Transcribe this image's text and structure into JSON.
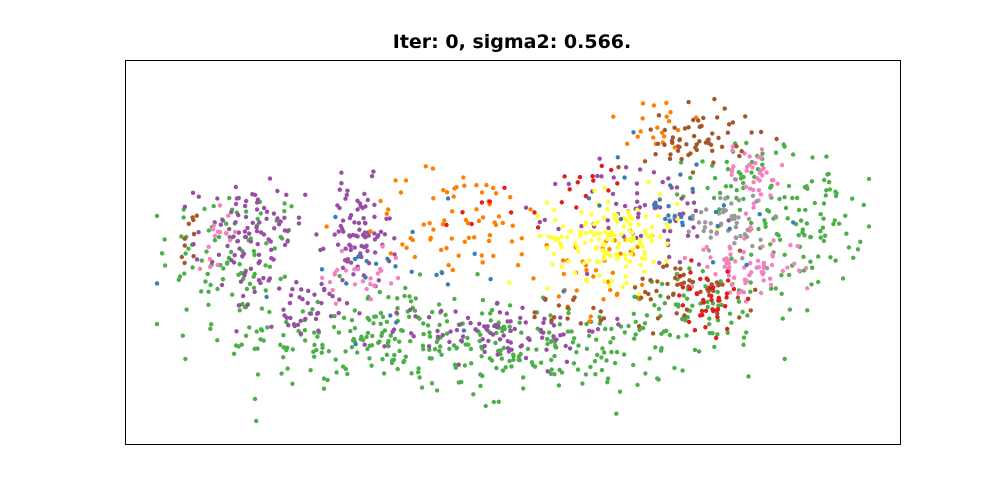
{
  "chart_data": {
    "type": "scatter",
    "title": "Iter: 0, sigma2: 0.566.",
    "xlabel": "",
    "ylabel": "",
    "grid": false,
    "legend": "none",
    "axes_ticks_visible": false,
    "xlim": [
      0,
      100
    ],
    "ylim": [
      0,
      50
    ],
    "series": [
      {
        "color": "#4daf4a",
        "clusters": [
          {
            "center": [
              14,
              25
            ],
            "spread": [
              7,
              6
            ],
            "count": 90
          },
          {
            "center": [
              32,
              14
            ],
            "spread": [
              14,
              5
            ],
            "count": 200
          },
          {
            "center": [
              55,
              12
            ],
            "spread": [
              13,
              4
            ],
            "count": 150
          },
          {
            "center": [
              75,
              17
            ],
            "spread": [
              8,
              4
            ],
            "count": 70
          },
          {
            "center": [
              88,
              29
            ],
            "spread": [
              5,
              6
            ],
            "count": 90
          },
          {
            "center": [
              80,
              35
            ],
            "spread": [
              5,
              4
            ],
            "count": 45
          }
        ]
      },
      {
        "color": "#984ea3",
        "clusters": [
          {
            "center": [
              16,
              27
            ],
            "spread": [
              5,
              5
            ],
            "count": 90
          },
          {
            "center": [
              30,
              27
            ],
            "spread": [
              3,
              5
            ],
            "count": 90
          },
          {
            "center": [
              48,
              15
            ],
            "spread": [
              10,
              3
            ],
            "count": 90
          },
          {
            "center": [
              22,
              18
            ],
            "spread": [
              6,
              3
            ],
            "count": 40
          },
          {
            "center": [
              67,
              30
            ],
            "spread": [
              7,
              5
            ],
            "count": 70
          }
        ]
      },
      {
        "color": "#ff7f00",
        "clusters": [
          {
            "center": [
              43,
              29
            ],
            "spread": [
              10,
              5
            ],
            "count": 70
          },
          {
            "center": [
              62,
              22
            ],
            "spread": [
              5,
              4
            ],
            "count": 35
          },
          {
            "center": [
              68,
              42
            ],
            "spread": [
              5,
              3
            ],
            "count": 20
          }
        ]
      },
      {
        "color": "#ffff33",
        "clusters": [
          {
            "center": [
              63,
              27
            ],
            "spread": [
              6,
              4
            ],
            "count": 150
          }
        ]
      },
      {
        "color": "#f781bf",
        "clusters": [
          {
            "center": [
              12,
              28
            ],
            "spread": [
              2,
              3
            ],
            "count": 15
          },
          {
            "center": [
              80,
              23
            ],
            "spread": [
              5,
              3
            ],
            "count": 70
          },
          {
            "center": [
              81,
              35
            ],
            "spread": [
              3,
              3
            ],
            "count": 40
          },
          {
            "center": [
              31,
              22
            ],
            "spread": [
              4,
              3
            ],
            "count": 25
          }
        ]
      },
      {
        "color": "#999999",
        "clusters": [
          {
            "center": [
              77,
              29
            ],
            "spread": [
              4,
              3
            ],
            "count": 50
          }
        ]
      },
      {
        "color": "#a65628",
        "clusters": [
          {
            "center": [
              74,
              40
            ],
            "spread": [
              5,
              3
            ],
            "count": 60
          },
          {
            "center": [
              73,
              20
            ],
            "spread": [
              6,
              3
            ],
            "count": 50
          },
          {
            "center": [
              8,
              26
            ],
            "spread": [
              1,
              3
            ],
            "count": 10
          },
          {
            "center": [
              58,
              17
            ],
            "spread": [
              4,
              2
            ],
            "count": 15
          }
        ]
      },
      {
        "color": "#e41a1c",
        "clusters": [
          {
            "center": [
              75,
              19
            ],
            "spread": [
              3,
              3
            ],
            "count": 40
          },
          {
            "center": [
              50,
              31
            ],
            "spread": [
              7,
              2
            ],
            "count": 12
          },
          {
            "center": [
              59,
              35
            ],
            "spread": [
              3,
              2
            ],
            "count": 10
          }
        ]
      },
      {
        "color": "#377eb8",
        "clusters": [
          {
            "center": [
              35,
              22
            ],
            "spread": [
              15,
              6
            ],
            "count": 25
          },
          {
            "center": [
              72,
              32
            ],
            "spread": [
              8,
              5
            ],
            "count": 30
          }
        ]
      }
    ]
  }
}
